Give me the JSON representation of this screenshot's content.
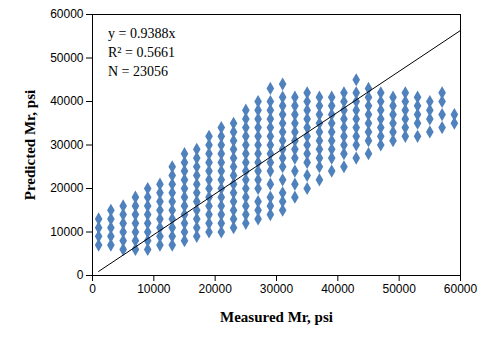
{
  "chart_data": {
    "type": "scatter",
    "x_label": "Measured Mr, psi",
    "y_label": "Predicted Mr, psi",
    "annotations": [
      "y = 0.9388x",
      "R² = 0.5661",
      "N = 23056"
    ],
    "xlim": [
      0,
      60000
    ],
    "ylim": [
      0,
      60000
    ],
    "xticks": [
      0,
      10000,
      20000,
      30000,
      40000,
      50000,
      60000
    ],
    "yticks": [
      0,
      10000,
      20000,
      30000,
      40000,
      50000,
      60000
    ],
    "grid": false,
    "series": [
      {
        "type": "scatter",
        "color": "#4f81bd",
        "marker": "diamond",
        "x": [
          1000,
          1000,
          1000,
          1000,
          3000,
          3000,
          3000,
          3000,
          3000,
          5000,
          5000,
          5000,
          5000,
          5000,
          5000,
          7000,
          7000,
          7000,
          7000,
          7000,
          7000,
          7000,
          9000,
          9000,
          9000,
          9000,
          9000,
          9000,
          9000,
          9000,
          11000,
          11000,
          11000,
          11000,
          11000,
          11000,
          11000,
          11000,
          13000,
          13000,
          13000,
          13000,
          13000,
          13000,
          13000,
          13000,
          13000,
          13000,
          15000,
          15000,
          15000,
          15000,
          15000,
          15000,
          15000,
          15000,
          15000,
          15000,
          15000,
          17000,
          17000,
          17000,
          17000,
          17000,
          17000,
          17000,
          17000,
          17000,
          17000,
          17000,
          19000,
          19000,
          19000,
          19000,
          19000,
          19000,
          19000,
          19000,
          19000,
          19000,
          19000,
          19000,
          21000,
          21000,
          21000,
          21000,
          21000,
          21000,
          21000,
          21000,
          21000,
          21000,
          21000,
          21000,
          21000,
          23000,
          23000,
          23000,
          23000,
          23000,
          23000,
          23000,
          23000,
          23000,
          23000,
          23000,
          23000,
          23000,
          25000,
          25000,
          25000,
          25000,
          25000,
          25000,
          25000,
          25000,
          25000,
          25000,
          25000,
          25000,
          25000,
          25000,
          27000,
          27000,
          27000,
          27000,
          27000,
          27000,
          27000,
          27000,
          27000,
          27000,
          27000,
          27000,
          27000,
          27000,
          29000,
          29000,
          29000,
          29000,
          29000,
          29000,
          29000,
          29000,
          29000,
          29000,
          29000,
          29000,
          29000,
          29000,
          31000,
          31000,
          31000,
          31000,
          31000,
          31000,
          31000,
          31000,
          31000,
          31000,
          31000,
          31000,
          31000,
          31000,
          33000,
          33000,
          33000,
          33000,
          33000,
          33000,
          33000,
          33000,
          33000,
          33000,
          33000,
          35000,
          35000,
          35000,
          35000,
          35000,
          35000,
          35000,
          35000,
          35000,
          35000,
          35000,
          37000,
          37000,
          37000,
          37000,
          37000,
          37000,
          37000,
          37000,
          37000,
          37000,
          39000,
          39000,
          39000,
          39000,
          39000,
          39000,
          39000,
          39000,
          39000,
          41000,
          41000,
          41000,
          41000,
          41000,
          41000,
          41000,
          41000,
          41000,
          43000,
          43000,
          43000,
          43000,
          43000,
          43000,
          43000,
          43000,
          43000,
          45000,
          45000,
          45000,
          45000,
          45000,
          45000,
          45000,
          45000,
          47000,
          47000,
          47000,
          47000,
          47000,
          47000,
          47000,
          49000,
          49000,
          49000,
          49000,
          49000,
          49000,
          51000,
          51000,
          51000,
          51000,
          51000,
          51000,
          53000,
          53000,
          53000,
          53000,
          53000,
          55000,
          55000,
          55000,
          55000,
          57000,
          57000,
          57000,
          57000,
          59000,
          59000
        ],
        "values": [
          7000,
          9000,
          11000,
          13000,
          7000,
          9000,
          11000,
          13000,
          15000,
          6000,
          8000,
          10000,
          12000,
          14000,
          16000,
          6000,
          8000,
          10000,
          12000,
          14000,
          16000,
          18000,
          6000,
          8000,
          10000,
          12000,
          14000,
          16000,
          18000,
          20000,
          7000,
          9000,
          11000,
          13000,
          15000,
          17000,
          19000,
          21000,
          7000,
          9000,
          11000,
          13000,
          15000,
          17000,
          19000,
          21000,
          23000,
          25000,
          8000,
          10000,
          12000,
          14000,
          16000,
          18000,
          20000,
          22000,
          24000,
          26000,
          28000,
          9000,
          11000,
          13000,
          15000,
          17000,
          19000,
          21000,
          23000,
          25000,
          27000,
          29000,
          10000,
          12000,
          14000,
          16000,
          18000,
          20000,
          22000,
          24000,
          26000,
          28000,
          30000,
          32000,
          10000,
          12000,
          14000,
          16000,
          18000,
          20000,
          22000,
          24000,
          26000,
          28000,
          30000,
          32000,
          34000,
          11000,
          13000,
          15000,
          17000,
          19000,
          21000,
          23000,
          25000,
          27000,
          29000,
          31000,
          33000,
          35000,
          12000,
          14000,
          16000,
          18000,
          20000,
          22000,
          24000,
          26000,
          28000,
          30000,
          32000,
          34000,
          36000,
          38000,
          13000,
          15000,
          17000,
          20000,
          22000,
          24000,
          26000,
          28000,
          30000,
          32000,
          34000,
          36000,
          38000,
          40000,
          14000,
          16000,
          18000,
          21000,
          24000,
          26000,
          28000,
          30000,
          32000,
          34000,
          36000,
          38000,
          40000,
          43000,
          15000,
          17000,
          19000,
          22000,
          25000,
          27000,
          29000,
          31000,
          33000,
          35000,
          37000,
          39000,
          41000,
          44000,
          18000,
          21000,
          24000,
          27000,
          29000,
          31000,
          33000,
          35000,
          37000,
          39000,
          41000,
          20000,
          23000,
          26000,
          28000,
          30000,
          32000,
          34000,
          36000,
          38000,
          40000,
          42000,
          22000,
          25000,
          27000,
          29000,
          31000,
          33000,
          35000,
          37000,
          39000,
          41000,
          24000,
          27000,
          29000,
          31000,
          33000,
          35000,
          37000,
          39000,
          41000,
          25000,
          28000,
          30000,
          32000,
          34000,
          36000,
          38000,
          40000,
          42000,
          27000,
          30000,
          32000,
          34000,
          36000,
          38000,
          40000,
          42000,
          45000,
          28000,
          31000,
          33000,
          35000,
          37000,
          39000,
          41000,
          43000,
          30000,
          32000,
          34000,
          36000,
          38000,
          40000,
          42000,
          31000,
          33000,
          35000,
          37000,
          39000,
          41000,
          32000,
          34000,
          36000,
          38000,
          40000,
          42000,
          32000,
          35000,
          37000,
          39000,
          41000,
          33000,
          36000,
          38000,
          40000,
          34000,
          37000,
          40000,
          42000,
          35000,
          37000
        ]
      },
      {
        "type": "line",
        "color": "#000000",
        "x": [
          1000,
          60000
        ],
        "values": [
          939,
          56328
        ]
      }
    ]
  }
}
